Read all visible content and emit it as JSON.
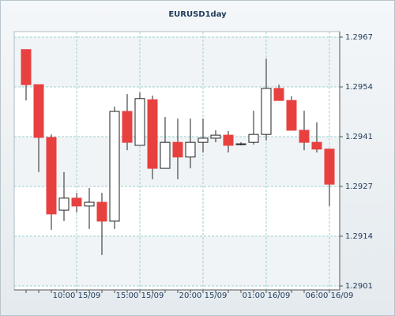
{
  "chart_data": {
    "type": "candlestick",
    "title": "EURUSD1day",
    "categories": [
      null,
      null,
      null,
      null,
      "10:00 15/09",
      null,
      null,
      null,
      null,
      "15:00 15/09",
      null,
      null,
      null,
      null,
      "20:00 15/09",
      null,
      null,
      null,
      null,
      "01:00 16/09",
      null,
      null,
      null,
      null,
      "06:00 16/09"
    ],
    "open": [
      1.29637,
      1.29544,
      1.29404,
      1.29211,
      1.29243,
      1.29222,
      1.29232,
      1.29182,
      1.29473,
      1.29383,
      1.29504,
      1.29322,
      1.29391,
      1.29352,
      1.29391,
      1.29402,
      1.2941,
      1.29387,
      1.29391,
      1.29412,
      1.29534,
      1.29502,
      1.29423,
      1.29391,
      1.29373
    ],
    "high": [
      1.29637,
      1.29544,
      1.29412,
      1.29312,
      1.29257,
      1.2927,
      1.29257,
      1.29486,
      1.29519,
      1.29523,
      1.29515,
      1.29458,
      1.29454,
      1.29454,
      1.29454,
      1.29423,
      1.29421,
      1.29391,
      1.29475,
      1.29613,
      1.29544,
      1.29513,
      1.29475,
      1.29444,
      1.29373
    ],
    "low": [
      1.29502,
      1.29312,
      1.29159,
      1.29182,
      1.29205,
      1.29161,
      1.29092,
      1.29161,
      1.2937,
      1.29383,
      1.29293,
      1.29322,
      1.29293,
      1.29322,
      1.29364,
      1.29391,
      1.29364,
      1.29383,
      1.29385,
      1.29396,
      1.29502,
      1.29423,
      1.2937,
      1.29364,
      1.29222
    ],
    "close": [
      1.29544,
      1.29404,
      1.29201,
      1.29243,
      1.29222,
      1.29232,
      1.29182,
      1.29473,
      1.29391,
      1.29507,
      1.29322,
      1.29391,
      1.29352,
      1.29391,
      1.29402,
      1.2941,
      1.29383,
      1.29387,
      1.29412,
      1.29534,
      1.29502,
      1.29423,
      1.29391,
      1.29373,
      1.2928
    ],
    "up_color": "#ffffff",
    "down_color": "#e8403f",
    "ylim": [
      1.2901,
      1.2967
    ],
    "yticks": [
      {
        "value": 1.2901,
        "label": "1.2901"
      },
      {
        "value": 1.29142,
        "label": "1.2914"
      },
      {
        "value": 1.29274,
        "label": "1.2927"
      },
      {
        "value": 1.29406,
        "label": "1.2941"
      },
      {
        "value": 1.29538,
        "label": "1.2954"
      },
      {
        "value": 1.2967,
        "label": "1.2967"
      }
    ],
    "grid": true
  }
}
